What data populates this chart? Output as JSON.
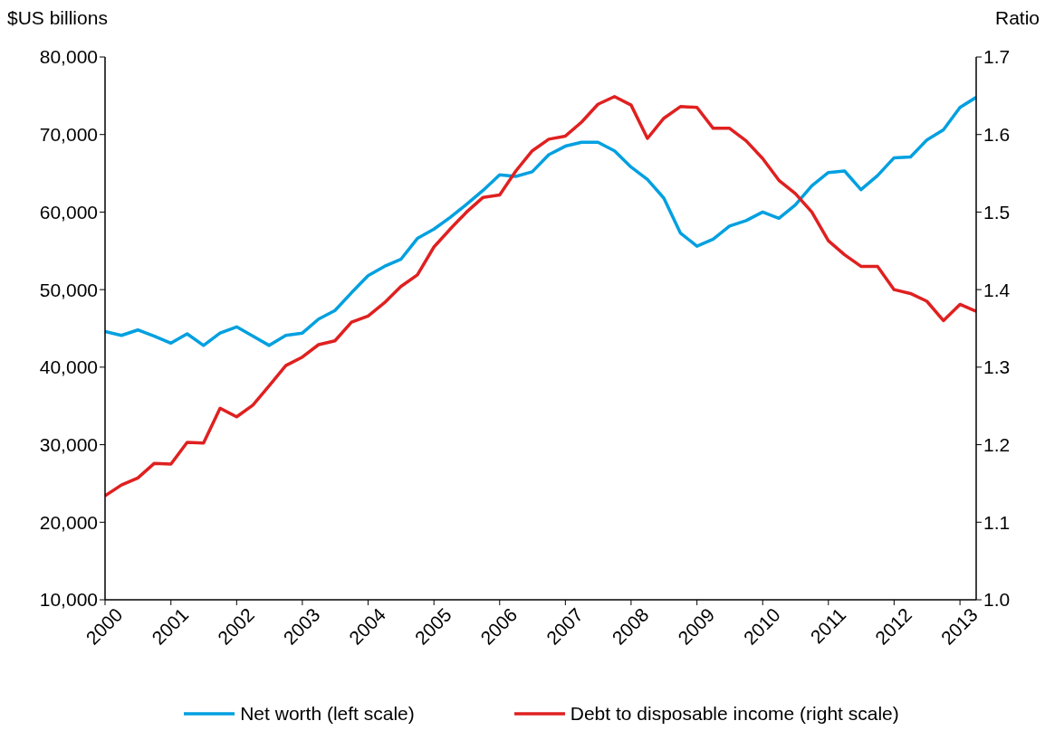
{
  "chart_data": {
    "type": "line",
    "ylabel": "$US billions",
    "y2label": "Ratio",
    "x": [
      "2000-01",
      "2000-04",
      "2000-07",
      "2000-10",
      "2001-01",
      "2001-04",
      "2001-07",
      "2001-10",
      "2002-01",
      "2002-04",
      "2002-07",
      "2002-10",
      "2003-01",
      "2003-04",
      "2003-07",
      "2003-10",
      "2004-01",
      "2004-04",
      "2004-07",
      "2004-10",
      "2005-01",
      "2005-04",
      "2005-07",
      "2005-10",
      "2006-01",
      "2006-04",
      "2006-07",
      "2006-10",
      "2007-01",
      "2007-04",
      "2007-07",
      "2007-10",
      "2008-01",
      "2008-04",
      "2008-07",
      "2008-10",
      "2009-01",
      "2009-04",
      "2009-07",
      "2009-10",
      "2010-01",
      "2010-04",
      "2010-07",
      "2010-10",
      "2011-01",
      "2011-04",
      "2011-07",
      "2011-10",
      "2012-01",
      "2012-04",
      "2012-07",
      "2012-10",
      "2013-01",
      "2013-04"
    ],
    "series": [
      {
        "name": "Net worth (left scale)",
        "color": "#00a0e0",
        "values": [
          44600,
          44100,
          44800,
          44000,
          43100,
          44300,
          42800,
          44400,
          45200,
          44000,
          42800,
          44100,
          44400,
          46200,
          47300,
          49600,
          51800,
          53000,
          53900,
          56600,
          57800,
          59300,
          61000,
          62800,
          64800,
          64600,
          65200,
          67400,
          68500,
          69000,
          69000,
          67900,
          65800,
          64200,
          61800,
          57300,
          55600,
          56500,
          58200,
          58900,
          60000,
          59200,
          60900,
          63400,
          65100,
          65300,
          62900,
          64700,
          67000,
          67100,
          69300,
          70600,
          73500,
          74800
        ]
      },
      {
        "name": "Debt to disposable income (right scale)",
        "color": "#e02020",
        "axis": "y2",
        "values": [
          1.134,
          1.148,
          1.157,
          1.176,
          1.175,
          1.203,
          1.202,
          1.247,
          1.236,
          1.251,
          1.276,
          1.302,
          1.313,
          1.329,
          1.334,
          1.358,
          1.366,
          1.383,
          1.404,
          1.419,
          1.455,
          1.478,
          1.5,
          1.519,
          1.522,
          1.553,
          1.579,
          1.594,
          1.598,
          1.616,
          1.639,
          1.649,
          1.638,
          1.595,
          1.621,
          1.636,
          1.635,
          1.608,
          1.608,
          1.592,
          1.569,
          1.541,
          1.524,
          1.5,
          1.463,
          1.445,
          1.43,
          1.43,
          1.4,
          1.395,
          1.385,
          1.36,
          1.381,
          1.372
        ]
      }
    ],
    "xlim": [
      "2000-01",
      "2013-04"
    ],
    "xticks": [
      "2000",
      "2001",
      "2002",
      "2003",
      "2004",
      "2005",
      "2006",
      "2007",
      "2008",
      "2009",
      "2010",
      "2011",
      "2012",
      "2013"
    ],
    "ylim": [
      10000,
      80000
    ],
    "yticks": [
      {
        "value": 10000,
        "label": "10,000"
      },
      {
        "value": 20000,
        "label": "20,000"
      },
      {
        "value": 30000,
        "label": "30,000"
      },
      {
        "value": 40000,
        "label": "40,000"
      },
      {
        "value": 50000,
        "label": "50,000"
      },
      {
        "value": 60000,
        "label": "60,000"
      },
      {
        "value": 70000,
        "label": "70,000"
      },
      {
        "value": 80000,
        "label": "80,000"
      }
    ],
    "y2lim": [
      1.0,
      1.7
    ],
    "y2ticks": [
      {
        "value": 1.0,
        "label": "1.0"
      },
      1.1,
      1.2,
      1.3,
      1.4,
      1.5,
      1.6,
      1.7
    ],
    "grid": false,
    "legend": "bottom",
    "marker": "none",
    "line_style": "solid"
  }
}
